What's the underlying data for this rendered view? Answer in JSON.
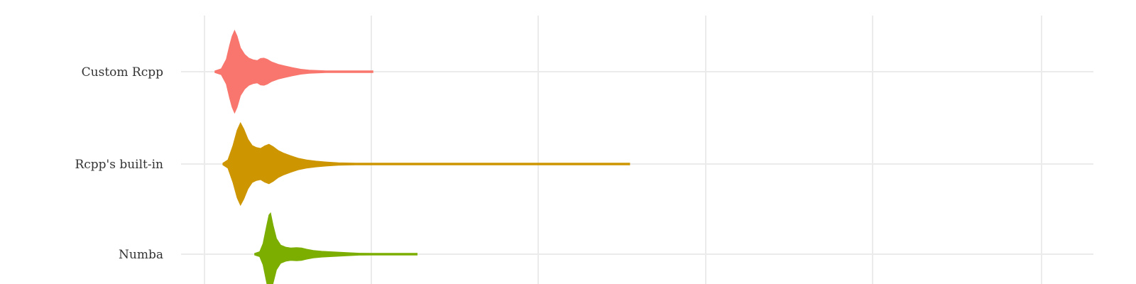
{
  "chart_data": {
    "type": "violin",
    "categories": [
      "Custom Rcpp",
      "Rcpp's built-in",
      "Numba"
    ],
    "xlim": [
      0,
      1
    ],
    "grid": true,
    "legend": "none",
    "series": [
      {
        "category": "Custom Rcpp",
        "color": "#F8766D",
        "min": 0.0125,
        "max": 0.2013,
        "density": [
          [
            0.0125,
            0.01
          ],
          [
            0.02,
            0.07
          ],
          [
            0.026,
            0.3
          ],
          [
            0.03,
            0.64
          ],
          [
            0.033,
            0.86
          ],
          [
            0.036,
            1.0
          ],
          [
            0.039,
            0.86
          ],
          [
            0.043,
            0.58
          ],
          [
            0.048,
            0.42
          ],
          [
            0.053,
            0.33
          ],
          [
            0.058,
            0.29
          ],
          [
            0.063,
            0.27
          ],
          [
            0.067,
            0.32
          ],
          [
            0.071,
            0.33
          ],
          [
            0.075,
            0.3
          ],
          [
            0.08,
            0.24
          ],
          [
            0.088,
            0.18
          ],
          [
            0.096,
            0.14
          ],
          [
            0.105,
            0.1
          ],
          [
            0.115,
            0.06
          ],
          [
            0.125,
            0.04
          ],
          [
            0.135,
            0.03
          ],
          [
            0.145,
            0.02
          ],
          [
            0.155,
            0.018
          ],
          [
            0.17,
            0.014
          ],
          [
            0.185,
            0.012
          ],
          [
            0.2013,
            0.01
          ]
        ]
      },
      {
        "category": "Rcpp's built-in",
        "color": "#CD9600",
        "min": 0.022,
        "max": 0.508,
        "density": [
          [
            0.022,
            0.01
          ],
          [
            0.028,
            0.1
          ],
          [
            0.034,
            0.45
          ],
          [
            0.039,
            0.82
          ],
          [
            0.043,
            1.0
          ],
          [
            0.047,
            0.85
          ],
          [
            0.052,
            0.6
          ],
          [
            0.057,
            0.45
          ],
          [
            0.062,
            0.4
          ],
          [
            0.067,
            0.38
          ],
          [
            0.072,
            0.44
          ],
          [
            0.077,
            0.48
          ],
          [
            0.082,
            0.42
          ],
          [
            0.088,
            0.33
          ],
          [
            0.095,
            0.26
          ],
          [
            0.103,
            0.2
          ],
          [
            0.112,
            0.14
          ],
          [
            0.122,
            0.1
          ],
          [
            0.133,
            0.07
          ],
          [
            0.145,
            0.05
          ],
          [
            0.16,
            0.03
          ],
          [
            0.18,
            0.022
          ],
          [
            0.21,
            0.016
          ],
          [
            0.26,
            0.012
          ],
          [
            0.35,
            0.01
          ],
          [
            0.45,
            0.01
          ],
          [
            0.508,
            0.009
          ]
        ]
      },
      {
        "category": "Numba",
        "color": "#7CAE00",
        "min": 0.06,
        "max": 0.254,
        "density": [
          [
            0.06,
            0.01
          ],
          [
            0.066,
            0.06
          ],
          [
            0.07,
            0.26
          ],
          [
            0.074,
            0.66
          ],
          [
            0.077,
            0.95
          ],
          [
            0.079,
            1.0
          ],
          [
            0.082,
            0.7
          ],
          [
            0.086,
            0.38
          ],
          [
            0.091,
            0.22
          ],
          [
            0.097,
            0.17
          ],
          [
            0.103,
            0.15
          ],
          [
            0.11,
            0.16
          ],
          [
            0.116,
            0.15
          ],
          [
            0.122,
            0.12
          ],
          [
            0.13,
            0.09
          ],
          [
            0.14,
            0.07
          ],
          [
            0.15,
            0.06
          ],
          [
            0.16,
            0.05
          ],
          [
            0.17,
            0.04
          ],
          [
            0.185,
            0.025
          ],
          [
            0.2,
            0.018
          ],
          [
            0.22,
            0.014
          ],
          [
            0.24,
            0.012
          ],
          [
            0.254,
            0.01
          ]
        ]
      }
    ]
  }
}
